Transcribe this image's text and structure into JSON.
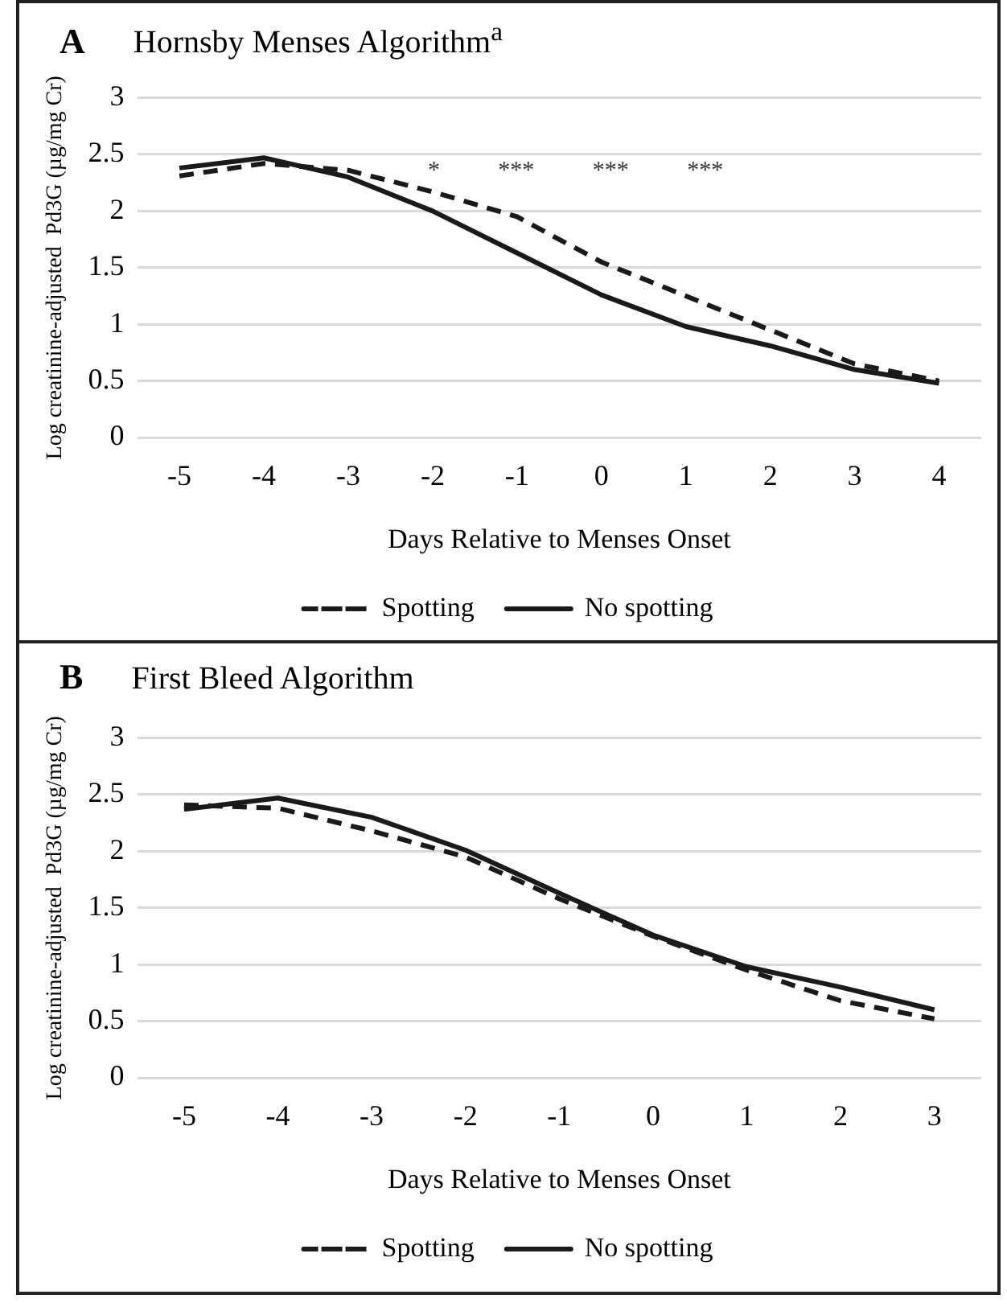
{
  "chart_data": [
    {
      "type": "line",
      "title": "Hornsby Menses Algorithm$^{a}$",
      "xlabel": "Days Relative to Menses Onset",
      "ylabel": "Log creatinine-adjusted  Pd3G (µg/mg Cr)",
      "categories": [
        "-5",
        "-4",
        "-3",
        "-2",
        "-1",
        "0",
        "1",
        "2",
        "3",
        "4"
      ],
      "series": [
        {
          "name": "Spotting",
          "color": "#1a1a1a",
          "line_style": "dashed",
          "values": [
            2.31,
            2.42,
            2.36,
            2.17,
            1.95,
            1.55,
            1.25,
            0.95,
            0.65,
            0.5
          ]
        },
        {
          "name": "No spotting",
          "color": "#1a1a1a",
          "line_style": "solid",
          "values": [
            2.38,
            2.47,
            2.3,
            2.0,
            1.63,
            1.26,
            0.98,
            0.81,
            0.6,
            0.48
          ]
        }
      ],
      "ylim": [
        0,
        3
      ],
      "yticks": [
        0,
        0.5,
        1,
        1.5,
        2,
        2.5,
        3
      ],
      "grid": "y",
      "legend": "bottom",
      "marker": "none",
      "annotations": [
        "A",
        "* *** *** ***"
      ]
    },
    {
      "type": "line",
      "title": "First Bleed Algorithm",
      "xlabel": "Days Relative to Menses Onset",
      "ylabel": "Log creatinine-adjusted  Pd3G (µg/mg Cr)",
      "categories": [
        "-5",
        "-4",
        "-3",
        "-2",
        "-1",
        "0",
        "1",
        "2",
        "3"
      ],
      "series": [
        {
          "name": "Spotting",
          "color": "#1a1a1a",
          "line_style": "dashed",
          "values": [
            2.41,
            2.38,
            2.18,
            1.95,
            1.58,
            1.25,
            0.95,
            0.68,
            0.52
          ]
        },
        {
          "name": "No spotting",
          "color": "#1a1a1a",
          "line_style": "solid",
          "values": [
            2.37,
            2.47,
            2.3,
            2.01,
            1.63,
            1.26,
            0.98,
            0.8,
            0.6
          ]
        }
      ],
      "ylim": [
        0,
        3
      ],
      "yticks": [
        0,
        0.5,
        1,
        1.5,
        2,
        2.5,
        3
      ],
      "grid": "y",
      "legend": "bottom",
      "marker": "none",
      "annotations": [
        "B"
      ]
    }
  ]
}
